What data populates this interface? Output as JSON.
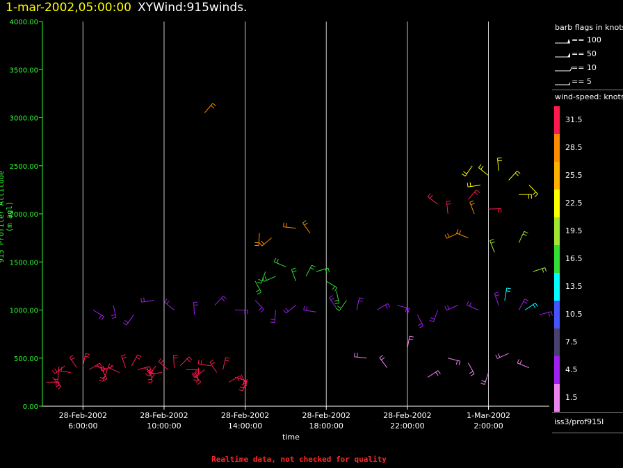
{
  "header": {
    "time": "1-mar-2002,05:00:00",
    "title": "XYWind:915winds."
  },
  "footer": {
    "text": "Realtime data, not checked for quality"
  },
  "legend": {
    "barb_title": "barb flags in knots",
    "barb_items": [
      "== 100",
      "== 50",
      "== 10",
      "== 5"
    ],
    "speed_title": "wind-speed: knots",
    "speed_levels": [
      {
        "label": "31.5",
        "color": "#ff1a4d"
      },
      {
        "label": "28.5",
        "color": "#ff8c00"
      },
      {
        "label": "25.5",
        "color": "#ffb000"
      },
      {
        "label": "22.5",
        "color": "#ffff00"
      },
      {
        "label": "19.5",
        "color": "#a0e632"
      },
      {
        "label": "16.5",
        "color": "#33dd33"
      },
      {
        "label": "13.5",
        "color": "#00ffff"
      },
      {
        "label": "10.5",
        "color": "#4455ff"
      },
      {
        "label": "7.5",
        "color": "#4a4070"
      },
      {
        "label": "4.5",
        "color": "#a020f0"
      },
      {
        "label": "1.5",
        "color": "#ee82ee"
      }
    ]
  },
  "station": "iss3/prof915l",
  "chart_data": {
    "type": "scatter",
    "xlabel": "time",
    "ylabel": "915 Profiler Altitude (m agl)",
    "ylim": [
      0,
      4000
    ],
    "yticks": [
      "0.00",
      "500.00",
      "1000.00",
      "1500.00",
      "2000.00",
      "2500.00",
      "3000.00",
      "3500.00",
      "4000.00"
    ],
    "xlim": [
      4.0,
      29.0
    ],
    "xticks": [
      {
        "hour": 6,
        "date": "28-Feb-2002",
        "time": "6:00:00"
      },
      {
        "hour": 10,
        "date": "28-Feb-2002",
        "time": "10:00:00"
      },
      {
        "hour": 14,
        "date": "28-Feb-2002",
        "time": "14:00:00"
      },
      {
        "hour": 18,
        "date": "28-Feb-2002",
        "time": "18:00:00"
      },
      {
        "hour": 22,
        "date": "28-Feb-2002",
        "time": "22:00:00"
      },
      {
        "hour": 26,
        "date": "1-Mar-2002",
        "time": "2:00:00"
      }
    ],
    "grid": true,
    "series": [
      {
        "x": [
          4.2,
          4.5,
          4.8,
          5.1,
          5.4,
          5.7,
          6.0,
          6.3,
          6.6,
          6.9,
          7.2,
          7.5,
          7.8,
          8.1,
          8.4,
          8.7,
          9.0,
          9.3,
          9.6,
          9.9,
          10.2,
          10.5,
          10.8,
          11.1,
          11.4,
          11.7,
          12.0,
          12.3,
          12.6,
          12.9,
          13.2,
          13.5,
          13.8,
          14.1
        ],
        "y": [
          250,
          300,
          380,
          420,
          350,
          400,
          420,
          380,
          420,
          400,
          380,
          420,
          350,
          400,
          420,
          380,
          400,
          380,
          420,
          350,
          380,
          400,
          420,
          380,
          350,
          400,
          380,
          420,
          350,
          380,
          250,
          300,
          330,
          280
        ],
        "level": "31.5"
      },
      {
        "x": [
          6.5,
          7.5,
          8.5,
          9.5,
          10.5,
          11.5,
          12.5,
          13.5,
          14.5,
          15.5,
          16.5,
          17.5,
          18.5,
          19.5,
          20.5,
          21.5,
          22.5,
          23.5,
          24.5,
          25.5,
          26.5,
          27.5,
          28.5
        ],
        "y": [
          1000,
          1050,
          950,
          1100,
          1000,
          950,
          1050,
          1000,
          1100,
          1000,
          1050,
          980,
          1020,
          1000,
          1000,
          1050,
          950,
          1000,
          1050,
          1000,
          1050,
          1000,
          950
        ],
        "level": "4.5"
      },
      {
        "x": [
          14.5,
          15.0,
          15.5,
          16.0,
          16.5,
          17.0,
          17.5,
          18.0,
          18.5,
          19.0
        ],
        "y": [
          1300,
          1400,
          1350,
          1450,
          1300,
          1350,
          1400,
          1300,
          1200,
          1100
        ],
        "level": "16.5"
      },
      {
        "x": [
          14.7,
          15.3,
          16.5,
          17.2
        ],
        "y": [
          1800,
          1750,
          1850,
          1800
        ],
        "level": "28.5"
      },
      {
        "x": [
          25.2,
          25.6,
          26.0,
          26.5,
          27.0,
          27.5,
          28.0
        ],
        "y": [
          2500,
          2300,
          2400,
          2450,
          2350,
          2200,
          2300
        ],
        "level": "22.5"
      },
      {
        "x": [
          24.5,
          25.0,
          25.3
        ],
        "y": [
          1800,
          1750,
          2000
        ],
        "level": "28.5"
      },
      {
        "x": [
          20.0,
          21.0,
          22.0,
          23.0,
          24.0,
          25.0,
          26.0,
          27.0,
          28.0
        ],
        "y": [
          500,
          400,
          600,
          300,
          500,
          450,
          350,
          550,
          400
        ],
        "level": "1.5"
      },
      {
        "x": [
          23.5,
          24.0,
          25.0,
          26.0
        ],
        "y": [
          2100,
          2000,
          2150,
          2050
        ],
        "level": "31.5"
      },
      {
        "x": [
          26.3,
          27.5,
          28.2
        ],
        "y": [
          1600,
          1700,
          1400
        ],
        "level": "19.5"
      },
      {
        "x": [
          26.8,
          27.8
        ],
        "y": [
          1100,
          1000
        ],
        "level": "13.5"
      },
      {
        "x": [
          12.0
        ],
        "y": [
          3050
        ],
        "level": "28.5"
      }
    ]
  }
}
